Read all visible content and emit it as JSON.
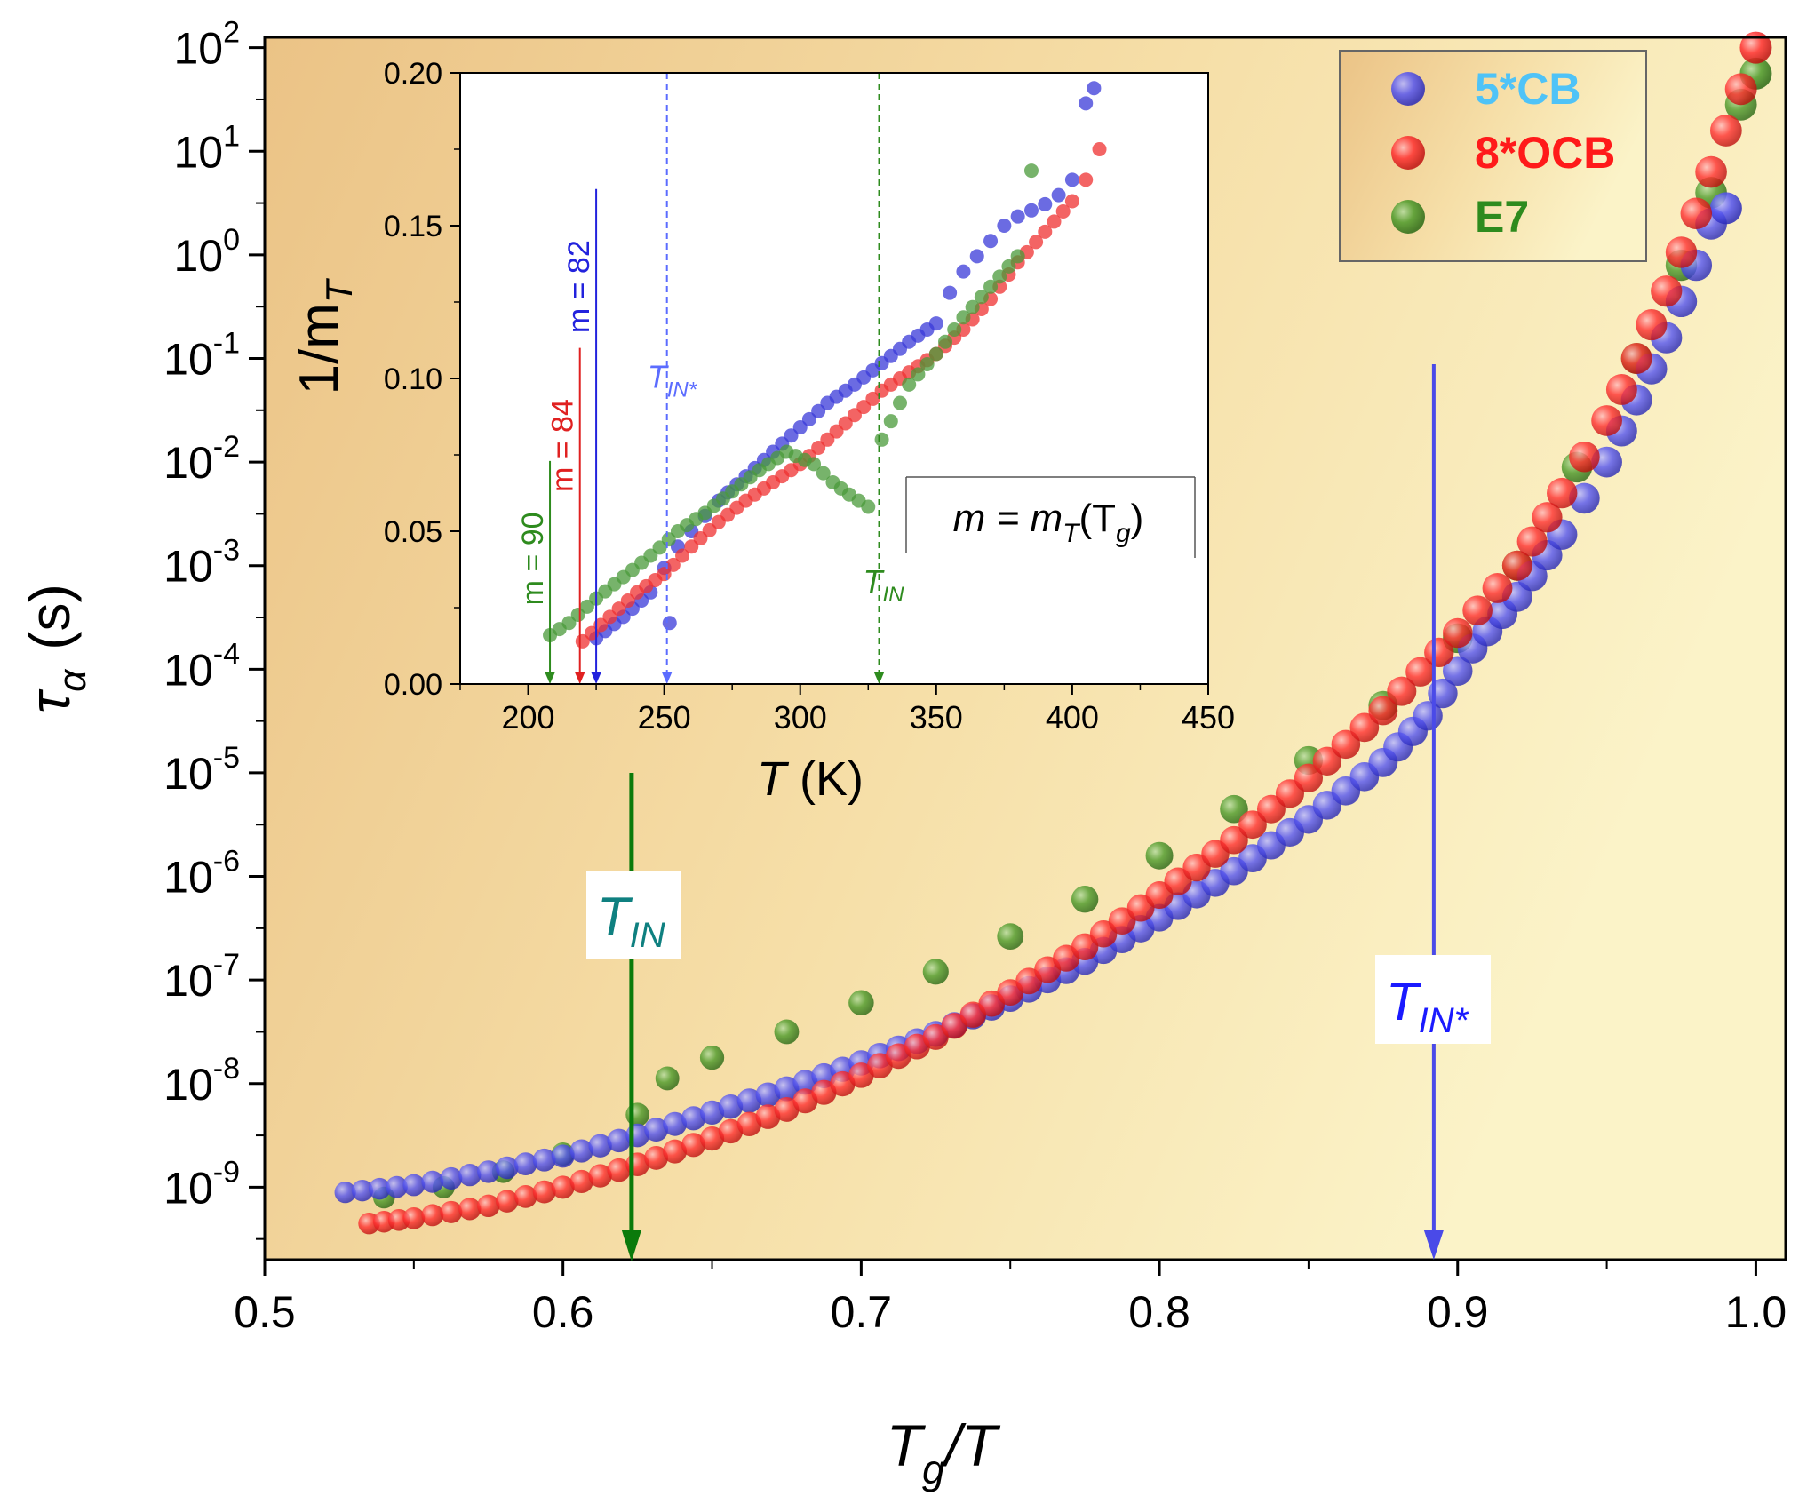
{
  "chart_data": [
    {
      "id": "main",
      "type": "scatter",
      "xlabel": {
        "main": "T",
        "sub": "g",
        "tail": "/T"
      },
      "ylabel": {
        "main": "τ",
        "sub": "α",
        "unit": "(s)"
      },
      "xlim": [
        0.5,
        1.01
      ],
      "ylim_log10": [
        -9.7,
        2.1
      ],
      "x_ticks": [
        {
          "v": 0.5,
          "label": "0.5"
        },
        {
          "v": 0.6,
          "label": "0.6"
        },
        {
          "v": 0.7,
          "label": "0.7"
        },
        {
          "v": 0.8,
          "label": "0.8"
        },
        {
          "v": 0.9,
          "label": "0.9"
        },
        {
          "v": 1.0,
          "label": "1.0"
        }
      ],
      "y_ticks": [
        {
          "exp": 2,
          "base": "10",
          "sup": "2"
        },
        {
          "exp": 1,
          "base": "10",
          "sup": "1"
        },
        {
          "exp": 0,
          "base": "10",
          "sup": "0"
        },
        {
          "exp": -1,
          "base": "10",
          "sup": "-1"
        },
        {
          "exp": -2,
          "base": "10",
          "sup": "-2"
        },
        {
          "exp": -3,
          "base": "10",
          "sup": "-3"
        },
        {
          "exp": -4,
          "base": "10",
          "sup": "-4"
        },
        {
          "exp": -5,
          "base": "10",
          "sup": "-5"
        },
        {
          "exp": -6,
          "base": "10",
          "sup": "-6"
        },
        {
          "exp": -7,
          "base": "10",
          "sup": "-7"
        },
        {
          "exp": -8,
          "base": "10",
          "sup": "-8"
        },
        {
          "exp": -9,
          "base": "10",
          "sup": "-9"
        }
      ],
      "series": [
        {
          "name": "5*CB",
          "color": "#4a4ae8",
          "legend_text_color": "#4fc3f7",
          "points": [
            [
              0.527,
              -9.05
            ],
            [
              0.55,
              -8.98
            ],
            [
              0.575,
              -8.85
            ],
            [
              0.6,
              -8.7
            ],
            [
              0.625,
              -8.5
            ],
            [
              0.65,
              -8.28
            ],
            [
              0.675,
              -8.05
            ],
            [
              0.7,
              -7.8
            ],
            [
              0.725,
              -7.52
            ],
            [
              0.75,
              -7.18
            ],
            [
              0.775,
              -6.82
            ],
            [
              0.8,
              -6.4
            ],
            [
              0.825,
              -5.95
            ],
            [
              0.85,
              -5.45
            ],
            [
              0.875,
              -4.9
            ],
            [
              0.89,
              -4.45
            ],
            [
              0.905,
              -3.8
            ],
            [
              0.92,
              -3.3
            ],
            [
              0.935,
              -2.7
            ],
            [
              0.95,
              -2.0
            ],
            [
              0.96,
              -1.4
            ],
            [
              0.97,
              -0.8
            ],
            [
              0.98,
              -0.1
            ],
            [
              0.985,
              0.3
            ],
            [
              0.99,
              0.45
            ]
          ]
        },
        {
          "name": "8*OCB",
          "color": "#ff2b2b",
          "legend_text_color": "#ff1a1a",
          "points": [
            [
              0.535,
              -9.35
            ],
            [
              0.55,
              -9.3
            ],
            [
              0.575,
              -9.18
            ],
            [
              0.6,
              -9.0
            ],
            [
              0.625,
              -8.78
            ],
            [
              0.65,
              -8.53
            ],
            [
              0.675,
              -8.25
            ],
            [
              0.7,
              -7.92
            ],
            [
              0.725,
              -7.55
            ],
            [
              0.75,
              -7.12
            ],
            [
              0.775,
              -6.68
            ],
            [
              0.8,
              -6.18
            ],
            [
              0.825,
              -5.65
            ],
            [
              0.85,
              -5.05
            ],
            [
              0.875,
              -4.4
            ],
            [
              0.9,
              -3.65
            ],
            [
              0.92,
              -3.0
            ],
            [
              0.935,
              -2.3
            ],
            [
              0.95,
              -1.6
            ],
            [
              0.96,
              -1.0
            ],
            [
              0.97,
              -0.35
            ],
            [
              0.98,
              0.4
            ],
            [
              0.99,
              1.2
            ],
            [
              1.0,
              2.0
            ]
          ]
        },
        {
          "name": "E7",
          "color": "#4c9a2a",
          "legend_text_color": "#2e8b1e",
          "points": [
            [
              0.54,
              -9.1
            ],
            [
              0.56,
              -9.0
            ],
            [
              0.58,
              -8.85
            ],
            [
              0.6,
              -8.68
            ],
            [
              0.625,
              -8.3
            ],
            [
              0.635,
              -7.95
            ],
            [
              0.65,
              -7.75
            ],
            [
              0.675,
              -7.5
            ],
            [
              0.7,
              -7.22
            ],
            [
              0.725,
              -6.92
            ],
            [
              0.75,
              -6.58
            ],
            [
              0.775,
              -6.22
            ],
            [
              0.8,
              -5.8
            ],
            [
              0.825,
              -5.35
            ],
            [
              0.85,
              -4.88
            ],
            [
              0.875,
              -4.35
            ],
            [
              0.9,
              -3.7
            ],
            [
              0.92,
              -3.0
            ],
            [
              0.94,
              -2.05
            ],
            [
              0.96,
              -1.0
            ],
            [
              0.975,
              -0.1
            ],
            [
              0.985,
              0.6
            ],
            [
              0.995,
              1.45
            ],
            [
              1.0,
              1.75
            ]
          ]
        }
      ],
      "legend": [
        "5*CB",
        "8*OCB",
        "E7"
      ],
      "annotations": [
        {
          "name": "tin",
          "x": 0.623,
          "label_main": "T",
          "label_sub": "IN",
          "color": "#0b7a0b",
          "text_color": "#0f8080"
        },
        {
          "name": "tin-star",
          "x": 0.892,
          "label_main": "T",
          "label_sub": "IN*",
          "color": "#4a4ae8",
          "text_color": "#1a1aff"
        }
      ]
    },
    {
      "id": "inset",
      "type": "scatter",
      "xlabel": {
        "main": "T",
        "tail": " (K)"
      },
      "ylabel": {
        "main": "1/m",
        "sub": "T"
      },
      "xlim": [
        175,
        450
      ],
      "ylim": [
        0,
        0.2
      ],
      "x_ticks": [
        "200",
        "250",
        "300",
        "350",
        "400",
        "450"
      ],
      "y_ticks": [
        "0.00",
        "0.05",
        "0.10",
        "0.15",
        "0.20"
      ],
      "series": [
        {
          "name": "5*CB",
          "color": "#3a3ad8",
          "points": [
            [
              225,
              0.015
            ],
            [
              235,
              0.022
            ],
            [
              245,
              0.03
            ],
            [
              250,
              0.038
            ],
            [
              252,
              0.02
            ],
            [
              255,
              0.045
            ],
            [
              260,
              0.05
            ],
            [
              265,
              0.055
            ],
            [
              270,
              0.06
            ],
            [
              280,
              0.068
            ],
            [
              290,
              0.076
            ],
            [
              300,
              0.084
            ],
            [
              310,
              0.092
            ],
            [
              320,
              0.098
            ],
            [
              330,
              0.105
            ],
            [
              340,
              0.112
            ],
            [
              350,
              0.118
            ],
            [
              355,
              0.128
            ],
            [
              360,
              0.135
            ],
            [
              365,
              0.14
            ],
            [
              370,
              0.145
            ],
            [
              375,
              0.15
            ],
            [
              380,
              0.153
            ],
            [
              385,
              0.155
            ],
            [
              390,
              0.157
            ],
            [
              395,
              0.16
            ],
            [
              400,
              0.165
            ],
            [
              405,
              0.19
            ],
            [
              408,
              0.195
            ]
          ]
        },
        {
          "name": "8*OCB",
          "color": "#ef3030",
          "points": [
            [
              220,
              0.014
            ],
            [
              230,
              0.022
            ],
            [
              240,
              0.03
            ],
            [
              250,
              0.036
            ],
            [
              260,
              0.045
            ],
            [
              270,
              0.053
            ],
            [
              280,
              0.06
            ],
            [
              290,
              0.066
            ],
            [
              300,
              0.072
            ],
            [
              310,
              0.08
            ],
            [
              320,
              0.088
            ],
            [
              330,
              0.096
            ],
            [
              340,
              0.102
            ],
            [
              350,
              0.108
            ],
            [
              360,
              0.116
            ],
            [
              370,
              0.126
            ],
            [
              380,
              0.138
            ],
            [
              390,
              0.148
            ],
            [
              400,
              0.158
            ],
            [
              405,
              0.165
            ],
            [
              410,
              0.175
            ]
          ]
        },
        {
          "name": "E7",
          "color": "#4a9a3a",
          "points": [
            [
              208,
              0.016
            ],
            [
              215,
              0.02
            ],
            [
              225,
              0.028
            ],
            [
              235,
              0.035
            ],
            [
              245,
              0.042
            ],
            [
              255,
              0.05
            ],
            [
              265,
              0.056
            ],
            [
              275,
              0.063
            ],
            [
              285,
              0.07
            ],
            [
              295,
              0.076
            ],
            [
              305,
              0.072
            ],
            [
              312,
              0.066
            ],
            [
              318,
              0.062
            ],
            [
              325,
              0.058
            ],
            [
              330,
              0.08
            ],
            [
              340,
              0.098
            ],
            [
              350,
              0.108
            ],
            [
              360,
              0.12
            ],
            [
              370,
              0.13
            ],
            [
              380,
              0.14
            ],
            [
              385,
              0.168
            ]
          ]
        }
      ],
      "markers": [
        {
          "name": "m90",
          "x": 208,
          "top": 0.073,
          "label": "m = 90",
          "color": "#2e8b1e"
        },
        {
          "name": "m84",
          "x": 219,
          "top": 0.11,
          "label": "m = 84",
          "color": "#e02020"
        },
        {
          "name": "m82",
          "x": 225,
          "top": 0.162,
          "label": "m = 82",
          "color": "#2222dd"
        }
      ],
      "vlines": [
        {
          "name": "tin-star",
          "x": 251,
          "label_main": "T",
          "label_sub": "IN*",
          "color": "#5b6cff",
          "label_y": 0.097
        },
        {
          "name": "tin",
          "x": 329,
          "label_main": "T",
          "label_sub": "IN",
          "color": "#2e8b1e",
          "label_y": 0.03
        }
      ],
      "box_label": {
        "main": "m = m",
        "sub1": "T",
        "open": "(T",
        "sub2": "g",
        "close": ")"
      }
    }
  ],
  "colors": {
    "bg_light": "#faf0c4",
    "bg_dark": "#edc98c"
  }
}
